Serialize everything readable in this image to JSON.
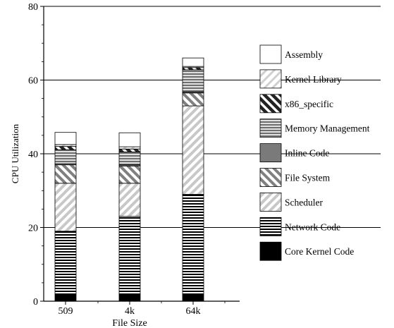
{
  "chart_data": {
    "type": "bar",
    "stacked": true,
    "categories": [
      "509",
      "4k",
      "64k"
    ],
    "xlabel": "File Size",
    "ylabel": "CPU Utilization",
    "ylim": [
      0,
      80
    ],
    "yticks": [
      0,
      20,
      40,
      60,
      80
    ],
    "grid": true,
    "legend_position": "right",
    "series": [
      {
        "name": "Core Kernel Code",
        "pattern": "solid-black",
        "values": [
          2,
          2,
          2
        ]
      },
      {
        "name": "Network Code",
        "pattern": "horizontal-stripes",
        "values": [
          17,
          21,
          27
        ]
      },
      {
        "name": "Scheduler",
        "pattern": "light-diagonal",
        "values": [
          13,
          9,
          24
        ]
      },
      {
        "name": "File System",
        "pattern": "dark-diagonal-back",
        "values": [
          5,
          4.7,
          3.5
        ]
      },
      {
        "name": "Inline Code",
        "pattern": "solid-gray",
        "values": [
          0.3,
          0.3,
          0.3
        ]
      },
      {
        "name": "Memory Management",
        "pattern": "gray-stripes",
        "values": [
          3.8,
          3.5,
          6
        ]
      },
      {
        "name": "x86_specific",
        "pattern": "dark-diagonal",
        "values": [
          0.9,
          0.8,
          0.6
        ]
      },
      {
        "name": "Kernel Library",
        "pattern": "light-diagonal-thin",
        "values": [
          0.5,
          0.6,
          0.3
        ]
      },
      {
        "name": "Assembly",
        "pattern": "white",
        "values": [
          3.3,
          3.8,
          2.3
        ]
      }
    ],
    "legend_order": [
      "Assembly",
      "Kernel Library",
      "x86_specific",
      "Memory Management",
      "Inline Code",
      "File System",
      "Scheduler",
      "Network Code",
      "Core Kernel Code"
    ]
  }
}
